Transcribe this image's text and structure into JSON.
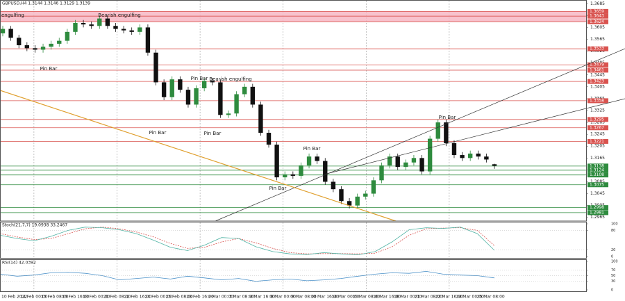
{
  "chart_data": [
    {
      "type": "candlestick",
      "title": "GBPUSD,H4 1.3144 1.3146 1.3129 1.3139",
      "open": [
        1.3585,
        1.36,
        1.357,
        1.3545,
        1.3535,
        1.353,
        1.354,
        1.355,
        1.356,
        1.359,
        1.362,
        1.3615,
        1.361,
        1.3635,
        1.361,
        1.36,
        1.3595,
        1.359,
        1.3605,
        1.352,
        1.342,
        1.337,
        1.343,
        1.3395,
        1.3345,
        1.34,
        1.3425,
        1.342,
        1.331,
        1.3315,
        1.338,
        1.3405,
        1.3345,
        1.325,
        1.321,
        1.31,
        1.311,
        1.3105,
        1.314,
        1.317,
        1.3155,
        1.3085,
        1.306,
        1.302,
        1.3005,
        1.3035,
        1.3045,
        1.309,
        1.314,
        1.317,
        1.3135,
        1.315,
        1.3165,
        1.312,
        1.323,
        1.3285,
        1.3215,
        1.3175,
        1.3165,
        1.318,
        1.317,
        1.3144
      ],
      "high": [
        1.361,
        1.361,
        1.358,
        1.3555,
        1.3545,
        1.355,
        1.356,
        1.357,
        1.36,
        1.363,
        1.363,
        1.3625,
        1.3645,
        1.3645,
        1.362,
        1.361,
        1.3605,
        1.3615,
        1.3615,
        1.353,
        1.343,
        1.344,
        1.344,
        1.3405,
        1.341,
        1.3435,
        1.3435,
        1.343,
        1.3325,
        1.339,
        1.3415,
        1.3415,
        1.3355,
        1.326,
        1.322,
        1.312,
        1.312,
        1.315,
        1.318,
        1.318,
        1.3165,
        1.3095,
        1.307,
        1.303,
        1.3045,
        1.3055,
        1.31,
        1.315,
        1.318,
        1.318,
        1.316,
        1.3175,
        1.3175,
        1.324,
        1.3295,
        1.3295,
        1.3225,
        1.3185,
        1.319,
        1.319,
        1.318,
        1.3146
      ],
      "low": [
        1.3575,
        1.356,
        1.3535,
        1.3525,
        1.352,
        1.352,
        1.353,
        1.354,
        1.355,
        1.358,
        1.3605,
        1.36,
        1.36,
        1.36,
        1.359,
        1.3585,
        1.358,
        1.358,
        1.351,
        1.341,
        1.336,
        1.336,
        1.3385,
        1.3335,
        1.3335,
        1.339,
        1.341,
        1.33,
        1.33,
        1.3305,
        1.337,
        1.3335,
        1.324,
        1.32,
        1.309,
        1.309,
        1.3095,
        1.3095,
        1.313,
        1.3145,
        1.3075,
        1.305,
        1.301,
        1.2995,
        1.2995,
        1.3025,
        1.3035,
        1.308,
        1.313,
        1.3125,
        1.3125,
        1.314,
        1.311,
        1.311,
        1.322,
        1.3205,
        1.3165,
        1.3155,
        1.3155,
        1.316,
        1.315,
        1.3129
      ],
      "close": [
        1.36,
        1.357,
        1.3545,
        1.3535,
        1.353,
        1.354,
        1.355,
        1.356,
        1.359,
        1.362,
        1.3615,
        1.361,
        1.3635,
        1.361,
        1.36,
        1.3595,
        1.359,
        1.3605,
        1.352,
        1.342,
        1.337,
        1.343,
        1.3395,
        1.3345,
        1.34,
        1.3425,
        1.342,
        1.331,
        1.3315,
        1.338,
        1.3405,
        1.3345,
        1.325,
        1.321,
        1.31,
        1.311,
        1.3105,
        1.314,
        1.317,
        1.3155,
        1.3085,
        1.306,
        1.302,
        1.3005,
        1.3035,
        1.3045,
        1.309,
        1.314,
        1.317,
        1.3135,
        1.315,
        1.3165,
        1.312,
        1.323,
        1.3285,
        1.3215,
        1.3175,
        1.3165,
        1.318,
        1.317,
        1.316,
        1.3139
      ],
      "up_color": "#2e8b3e",
      "down_color": "#111111",
      "ylim": [
        1.2955,
        1.3695
      ],
      "yticks": [
        1.2965,
        1.3005,
        1.3045,
        1.3085,
        1.3125,
        1.3165,
        1.3205,
        1.3245,
        1.3285,
        1.3325,
        1.3365,
        1.3405,
        1.3445,
        1.3485,
        1.3525,
        1.3565,
        1.3605,
        1.3645,
        1.3685
      ],
      "levels": [
        {
          "value": 1.3659,
          "color": "#d9534f"
        },
        {
          "value": 1.3643,
          "color": "#d9534f"
        },
        {
          "value": 1.3624,
          "color": "#d9534f"
        },
        {
          "value": 1.3533,
          "color": "#d9534f"
        },
        {
          "value": 1.3479,
          "color": "#d9534f"
        },
        {
          "value": 1.3461,
          "color": "#d9534f"
        },
        {
          "value": 1.3423,
          "color": "#d9534f"
        },
        {
          "value": 1.3358,
          "color": "#d9534f"
        },
        {
          "value": 1.3295,
          "color": "#d9534f"
        },
        {
          "value": 1.3267,
          "color": "#d9534f"
        },
        {
          "value": 1.3221,
          "color": "#d9534f"
        },
        {
          "value": 1.3138,
          "color": "#2e8b3e"
        },
        {
          "value": 1.3124,
          "color": "#2e8b3e"
        },
        {
          "value": 1.3108,
          "color": "#2e8b3e"
        },
        {
          "value": 1.3075,
          "color": "#2e8b3e"
        },
        {
          "value": 1.2998,
          "color": "#2e8b3e"
        },
        {
          "value": 1.2981,
          "color": "#2e8b3e"
        }
      ],
      "zone": {
        "from": 1.3624,
        "to": 1.3659,
        "color": "#f6b3c0"
      },
      "annotations": [
        "engulfing",
        "Bearish engulfing",
        "Pin Bar",
        "Pin Bar",
        "Bearish engulfing",
        "Pin Bar",
        "Pin Bar",
        "Pin Bar",
        "Pin Bar",
        "Pin Bar"
      ],
      "time_labels": [
        "10 Feb 2022",
        "14 Feb 00:00",
        "15 Feb 08:00",
        "16 Feb 16:00",
        "18 Feb 00:00",
        "21 Feb 08:00",
        "22 Feb 16:00",
        "24 Feb 00:00",
        "25 Feb 08:00",
        "28 Feb 16:00",
        "2 Mar 00:00",
        "3 Mar 08:00",
        "4 Mar 16:00",
        "8 Mar 00:00",
        "9 Mar 08:00",
        "10 Mar 16:00",
        "14 Mar 00:00",
        "15 Mar 08:00",
        "16 Mar 16:00",
        "18 Mar 00:00",
        "21 Mar 08:00",
        "22 Mar 16:00",
        "24 Mar 00:00",
        "25 Mar 08:00"
      ]
    },
    {
      "type": "line",
      "title": "Stoch(21,7,7) 19.0938 33.2467",
      "ylim": [
        0,
        100
      ],
      "yticks": [
        0,
        20,
        80,
        100
      ],
      "series": [
        {
          "color": "#4fb3a4",
          "dash": false,
          "values": [
            65,
            55,
            48,
            62,
            80,
            90,
            88,
            82,
            70,
            50,
            28,
            18,
            35,
            58,
            55,
            30,
            15,
            8,
            6,
            12,
            8,
            5,
            15,
            45,
            82,
            88,
            86,
            90,
            70,
            19
          ]
        },
        {
          "color": "#d9534f",
          "dash": true,
          "values": [
            70,
            60,
            52,
            55,
            70,
            85,
            90,
            85,
            75,
            60,
            40,
            25,
            28,
            45,
            55,
            42,
            25,
            12,
            8,
            9,
            9,
            8,
            10,
            30,
            65,
            85,
            87,
            88,
            80,
            33
          ]
        }
      ]
    },
    {
      "type": "line",
      "title": "RSI(14) 42.0392",
      "ylim": [
        0,
        100
      ],
      "yticks": [
        0,
        30,
        50,
        70,
        100
      ],
      "series": [
        {
          "color": "#4a90c8",
          "dash": false,
          "values": [
            55,
            48,
            52,
            60,
            62,
            58,
            50,
            35,
            40,
            45,
            38,
            48,
            42,
            35,
            40,
            30,
            35,
            38,
            32,
            35,
            40,
            48,
            55,
            60,
            58,
            65,
            55,
            52,
            50,
            42
          ]
        }
      ]
    }
  ]
}
